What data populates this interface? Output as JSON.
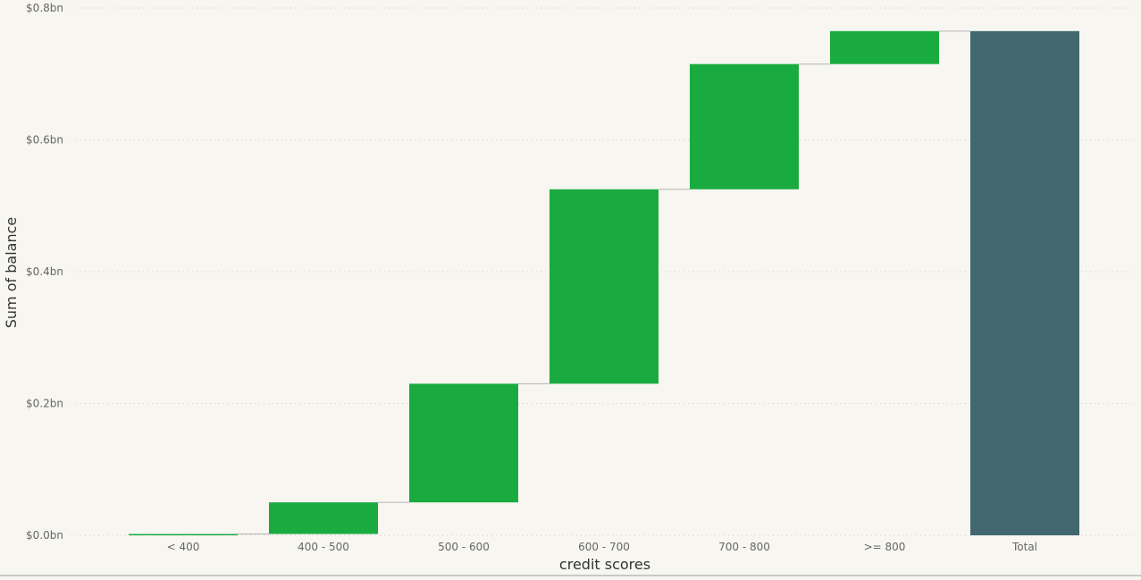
{
  "chart_data": {
    "type": "waterfall",
    "categories": [
      "< 400",
      "400 - 500",
      "500 - 600",
      "600 - 700",
      "700 - 800",
      ">= 800",
      "Total"
    ],
    "values": [
      0.002,
      0.048,
      0.18,
      0.295,
      0.19,
      0.05,
      0.765
    ],
    "is_total": [
      false,
      false,
      false,
      false,
      false,
      false,
      true
    ],
    "xlabel": "credit scores",
    "ylabel": "Sum of balance",
    "ylim": [
      0,
      0.8
    ],
    "yticks": [
      0.0,
      0.2,
      0.4,
      0.6,
      0.8
    ],
    "ytick_labels": [
      "$0.0bn",
      "$0.2bn",
      "$0.4bn",
      "$0.6bn",
      "$0.8bn"
    ],
    "grid": true,
    "colors": {
      "increase": "#1aab40",
      "total": "#41676f",
      "connector": "#b3b3b3",
      "grid": "#cccccc",
      "background": "#f7f6f1"
    }
  }
}
